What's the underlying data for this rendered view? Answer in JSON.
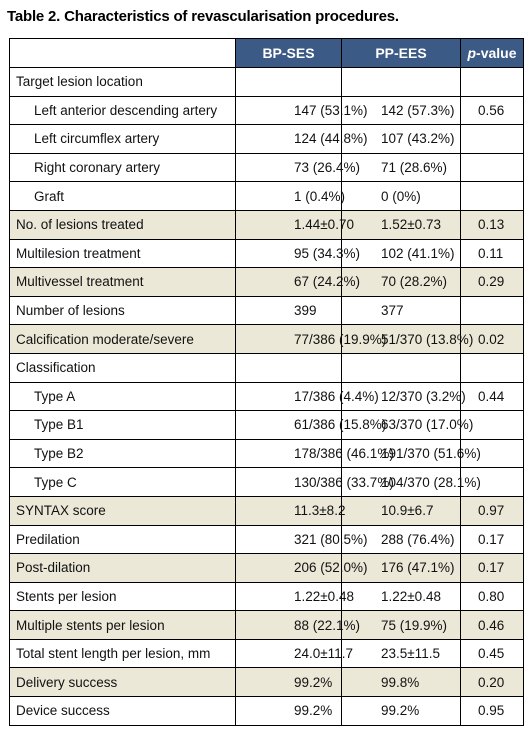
{
  "title": "Table 2. Characteristics of revascularisation procedures.",
  "headers": {
    "col1": "",
    "col2": "BP-SES",
    "col3": "PP-EES",
    "col4_italic": "p",
    "col4_rest": "-value"
  },
  "rows": [
    {
      "label": "Target lesion location",
      "bp": "",
      "pp": "",
      "p": "",
      "indent": false,
      "shade": false
    },
    {
      "label": "Left anterior descending artery",
      "bp": "147 (53.1%)",
      "pp": "142 (57.3%)",
      "p": "0.56",
      "indent": true,
      "shade": false
    },
    {
      "label": "Left circumflex artery",
      "bp": "124 (44.8%)",
      "pp": "107 (43.2%)",
      "p": "",
      "indent": true,
      "shade": false
    },
    {
      "label": "Right coronary artery",
      "bp": "73 (26.4%)",
      "pp": "71 (28.6%)",
      "p": "",
      "indent": true,
      "shade": false
    },
    {
      "label": "Graft",
      "bp": "1 (0.4%)",
      "pp": "0 (0%)",
      "p": "",
      "indent": true,
      "shade": false
    },
    {
      "label": "No. of lesions treated",
      "bp": "1.44±0.70",
      "pp": "1.52±0.73",
      "p": "0.13",
      "indent": false,
      "shade": true
    },
    {
      "label": "Multilesion treatment",
      "bp": "95 (34.3%)",
      "pp": "102 (41.1%)",
      "p": "0.11",
      "indent": false,
      "shade": false
    },
    {
      "label": "Multivessel treatment",
      "bp": "67 (24.2%)",
      "pp": "70 (28.2%)",
      "p": "0.29",
      "indent": false,
      "shade": true
    },
    {
      "label": "Number of lesions",
      "bp": "399",
      "pp": "377",
      "p": "",
      "indent": false,
      "shade": false
    },
    {
      "label": "Calcification moderate/severe",
      "bp": "77/386 (19.9%)",
      "pp": "51/370 (13.8%)",
      "p": "0.02",
      "indent": false,
      "shade": true
    },
    {
      "label": "Classification",
      "bp": "",
      "pp": "",
      "p": "",
      "indent": false,
      "shade": false
    },
    {
      "label": "Type A",
      "bp": "17/386 (4.4%)",
      "pp": "12/370 (3.2%)",
      "p": "0.44",
      "indent": true,
      "shade": false
    },
    {
      "label": "Type B1",
      "bp": "61/386 (15.8%)",
      "pp": "63/370 (17.0%)",
      "p": "",
      "indent": true,
      "shade": false
    },
    {
      "label": "Type B2",
      "bp": "178/386 (46.1%)",
      "pp": "191/370 (51.6%)",
      "p": "",
      "indent": true,
      "shade": false
    },
    {
      "label": "Type C",
      "bp": "130/386 (33.7%)",
      "pp": "104/370 (28.1%)",
      "p": "",
      "indent": true,
      "shade": false
    },
    {
      "label": "SYNTAX score",
      "bp": "11.3±8.2",
      "pp": "10.9±6.7",
      "p": "0.97",
      "indent": false,
      "shade": true
    },
    {
      "label": "Predilation",
      "bp": "321 (80.5%)",
      "pp": "288 (76.4%)",
      "p": "0.17",
      "indent": false,
      "shade": false
    },
    {
      "label": "Post-dilation",
      "bp": "206 (52.0%)",
      "pp": "176 (47.1%)",
      "p": "0.17",
      "indent": false,
      "shade": true
    },
    {
      "label": "Stents per lesion",
      "bp": "1.22±0.48",
      "pp": "1.22±0.48",
      "p": "0.80",
      "indent": false,
      "shade": false
    },
    {
      "label": "Multiple stents per lesion",
      "bp": "88 (22.1%)",
      "pp": "75 (19.9%)",
      "p": "0.46",
      "indent": false,
      "shade": true
    },
    {
      "label": "Total stent length per lesion, mm",
      "bp": "24.0±11.7",
      "pp": "23.5±11.5",
      "p": "0.45",
      "indent": false,
      "shade": false
    },
    {
      "label": "Delivery success",
      "bp": "99.2%",
      "pp": "99.8%",
      "p": "0.20",
      "indent": false,
      "shade": true
    },
    {
      "label": "Device success",
      "bp": "99.2%",
      "pp": "99.2%",
      "p": "0.95",
      "indent": false,
      "shade": false
    }
  ]
}
